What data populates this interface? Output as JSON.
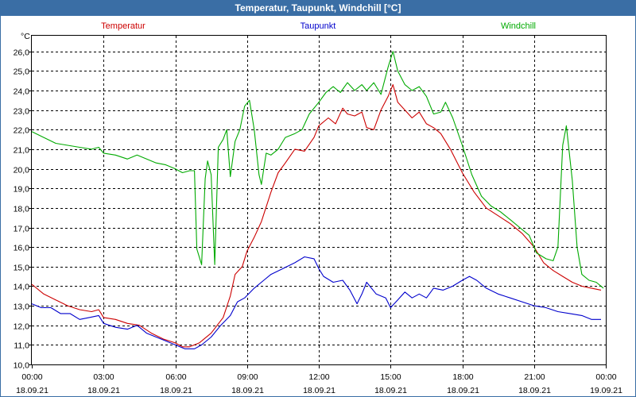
{
  "window": {
    "title": "Temperatur, Taupunkt, Windchill [°C]"
  },
  "chart_data": {
    "type": "line",
    "title": "Temperatur, Taupunkt, Windchill [°C]",
    "ylabel": "°C",
    "xlabel": "",
    "ylim": [
      10,
      26.8
    ],
    "xlim": [
      0,
      24
    ],
    "grid": true,
    "y_ticks": [
      {
        "v": 10,
        "label": "10,0"
      },
      {
        "v": 11,
        "label": "11,0"
      },
      {
        "v": 12,
        "label": "12,0"
      },
      {
        "v": 13,
        "label": "13,0"
      },
      {
        "v": 14,
        "label": "14,0"
      },
      {
        "v": 15,
        "label": "15,0"
      },
      {
        "v": 16,
        "label": "16,0"
      },
      {
        "v": 17,
        "label": "17,0"
      },
      {
        "v": 18,
        "label": "18,0"
      },
      {
        "v": 19,
        "label": "19,0"
      },
      {
        "v": 20,
        "label": "20,0"
      },
      {
        "v": 21,
        "label": "21,0"
      },
      {
        "v": 22,
        "label": "22,0"
      },
      {
        "v": 23,
        "label": "23,0"
      },
      {
        "v": 24,
        "label": "24,0"
      },
      {
        "v": 25,
        "label": "25,0"
      },
      {
        "v": 26,
        "label": "26,0"
      }
    ],
    "x_ticks": [
      {
        "h": 0,
        "time": "00:00",
        "date": "18.09.21"
      },
      {
        "h": 3,
        "time": "03:00",
        "date": "18.09.21"
      },
      {
        "h": 6,
        "time": "06:00",
        "date": "18.09.21"
      },
      {
        "h": 9,
        "time": "09:00",
        "date": "18.09.21"
      },
      {
        "h": 12,
        "time": "12:00",
        "date": "18.09.21"
      },
      {
        "h": 15,
        "time": "15:00",
        "date": "18.09.21"
      },
      {
        "h": 18,
        "time": "18:00",
        "date": "18.09.21"
      },
      {
        "h": 21,
        "time": "21:00",
        "date": "18.09.21"
      },
      {
        "h": 24,
        "time": "00:00",
        "date": "19.09.21"
      }
    ],
    "series": [
      {
        "name": "Temperatur",
        "color": "#cc0000",
        "points": [
          [
            0,
            14.1
          ],
          [
            0.5,
            13.6
          ],
          [
            1,
            13.3
          ],
          [
            1.5,
            13.0
          ],
          [
            2,
            12.8
          ],
          [
            2.5,
            12.7
          ],
          [
            2.8,
            12.8
          ],
          [
            3.0,
            12.4
          ],
          [
            3.5,
            12.3
          ],
          [
            4,
            12.1
          ],
          [
            4.5,
            12.0
          ],
          [
            5,
            11.6
          ],
          [
            5.5,
            11.3
          ],
          [
            6,
            11.1
          ],
          [
            6.3,
            10.9
          ],
          [
            6.6,
            10.9
          ],
          [
            7,
            11.1
          ],
          [
            7.5,
            11.6
          ],
          [
            8,
            12.4
          ],
          [
            8.3,
            13.5
          ],
          [
            8.5,
            14.6
          ],
          [
            8.8,
            15.0
          ],
          [
            9,
            15.8
          ],
          [
            9.3,
            16.5
          ],
          [
            9.6,
            17.3
          ],
          [
            10,
            18.8
          ],
          [
            10.3,
            19.8
          ],
          [
            10.6,
            20.3
          ],
          [
            11,
            21.0
          ],
          [
            11.4,
            20.9
          ],
          [
            11.8,
            21.6
          ],
          [
            12,
            22.2
          ],
          [
            12.4,
            22.6
          ],
          [
            12.7,
            22.3
          ],
          [
            13,
            23.1
          ],
          [
            13.2,
            22.8
          ],
          [
            13.5,
            22.7
          ],
          [
            13.8,
            22.9
          ],
          [
            14,
            22.1
          ],
          [
            14.3,
            22.0
          ],
          [
            14.6,
            23.0
          ],
          [
            14.9,
            23.7
          ],
          [
            15.1,
            24.3
          ],
          [
            15.3,
            23.4
          ],
          [
            15.6,
            23.0
          ],
          [
            15.9,
            22.6
          ],
          [
            16.2,
            22.9
          ],
          [
            16.5,
            22.3
          ],
          [
            16.8,
            22.1
          ],
          [
            17.1,
            21.8
          ],
          [
            17.5,
            21.0
          ],
          [
            18,
            19.8
          ],
          [
            18.5,
            18.8
          ],
          [
            19,
            18.0
          ],
          [
            19.5,
            17.6
          ],
          [
            20,
            17.2
          ],
          [
            20.5,
            16.7
          ],
          [
            21,
            16.0
          ],
          [
            21.4,
            15.2
          ],
          [
            21.8,
            14.8
          ],
          [
            22.2,
            14.5
          ],
          [
            22.6,
            14.2
          ],
          [
            23,
            14.0
          ],
          [
            23.4,
            13.9
          ],
          [
            23.8,
            13.8
          ]
        ]
      },
      {
        "name": "Taupunkt",
        "color": "#0000cc",
        "points": [
          [
            0,
            13.1
          ],
          [
            0.4,
            12.9
          ],
          [
            0.8,
            12.9
          ],
          [
            1.2,
            12.6
          ],
          [
            1.6,
            12.6
          ],
          [
            2,
            12.3
          ],
          [
            2.4,
            12.4
          ],
          [
            2.8,
            12.5
          ],
          [
            3.0,
            12.1
          ],
          [
            3.5,
            11.9
          ],
          [
            4,
            11.8
          ],
          [
            4.4,
            12.0
          ],
          [
            4.8,
            11.6
          ],
          [
            5.2,
            11.4
          ],
          [
            5.6,
            11.2
          ],
          [
            6,
            11.0
          ],
          [
            6.4,
            10.8
          ],
          [
            6.8,
            10.8
          ],
          [
            7.1,
            11.0
          ],
          [
            7.5,
            11.4
          ],
          [
            7.9,
            12.0
          ],
          [
            8.3,
            12.5
          ],
          [
            8.6,
            13.2
          ],
          [
            8.9,
            13.4
          ],
          [
            9.3,
            13.9
          ],
          [
            9.7,
            14.3
          ],
          [
            10,
            14.6
          ],
          [
            10.5,
            14.9
          ],
          [
            11,
            15.2
          ],
          [
            11.4,
            15.5
          ],
          [
            11.8,
            15.4
          ],
          [
            12,
            14.9
          ],
          [
            12.2,
            14.5
          ],
          [
            12.6,
            14.2
          ],
          [
            13,
            14.3
          ],
          [
            13.3,
            13.8
          ],
          [
            13.6,
            13.1
          ],
          [
            13.8,
            13.6
          ],
          [
            14,
            14.2
          ],
          [
            14.4,
            13.6
          ],
          [
            14.8,
            13.4
          ],
          [
            15.0,
            12.9
          ],
          [
            15.3,
            13.3
          ],
          [
            15.6,
            13.7
          ],
          [
            15.9,
            13.4
          ],
          [
            16.2,
            13.6
          ],
          [
            16.5,
            13.4
          ],
          [
            16.8,
            13.9
          ],
          [
            17.2,
            13.8
          ],
          [
            17.6,
            14.0
          ],
          [
            18.0,
            14.3
          ],
          [
            18.3,
            14.5
          ],
          [
            18.6,
            14.3
          ],
          [
            19,
            13.9
          ],
          [
            19.5,
            13.6
          ],
          [
            20,
            13.4
          ],
          [
            20.5,
            13.2
          ],
          [
            21,
            13.0
          ],
          [
            21.5,
            12.9
          ],
          [
            22,
            12.7
          ],
          [
            22.5,
            12.6
          ],
          [
            23,
            12.5
          ],
          [
            23.4,
            12.3
          ],
          [
            23.8,
            12.3
          ]
        ]
      },
      {
        "name": "Windchill",
        "color": "#00aa00",
        "points": [
          [
            0,
            21.9
          ],
          [
            0.5,
            21.6
          ],
          [
            1,
            21.3
          ],
          [
            1.5,
            21.2
          ],
          [
            2,
            21.1
          ],
          [
            2.5,
            21.0
          ],
          [
            2.8,
            21.1
          ],
          [
            3.0,
            20.8
          ],
          [
            3.5,
            20.7
          ],
          [
            4,
            20.5
          ],
          [
            4.4,
            20.7
          ],
          [
            4.8,
            20.5
          ],
          [
            5.2,
            20.3
          ],
          [
            5.6,
            20.2
          ],
          [
            6,
            20.0
          ],
          [
            6.3,
            19.8
          ],
          [
            6.6,
            19.9
          ],
          [
            6.8,
            19.9
          ],
          [
            6.9,
            15.9
          ],
          [
            7.1,
            15.1
          ],
          [
            7.25,
            19.5
          ],
          [
            7.35,
            20.4
          ],
          [
            7.5,
            19.7
          ],
          [
            7.65,
            15.1
          ],
          [
            7.8,
            21.1
          ],
          [
            8.0,
            21.5
          ],
          [
            8.15,
            22.0
          ],
          [
            8.3,
            19.6
          ],
          [
            8.5,
            21.4
          ],
          [
            8.7,
            22.0
          ],
          [
            8.9,
            23.2
          ],
          [
            9.1,
            23.5
          ],
          [
            9.3,
            22.0
          ],
          [
            9.5,
            19.7
          ],
          [
            9.6,
            19.2
          ],
          [
            9.8,
            20.8
          ],
          [
            10.0,
            20.7
          ],
          [
            10.3,
            21.0
          ],
          [
            10.6,
            21.6
          ],
          [
            11,
            21.8
          ],
          [
            11.3,
            22.0
          ],
          [
            11.6,
            22.8
          ],
          [
            12,
            23.4
          ],
          [
            12.3,
            23.9
          ],
          [
            12.6,
            24.2
          ],
          [
            12.9,
            23.9
          ],
          [
            13.2,
            24.4
          ],
          [
            13.5,
            24.0
          ],
          [
            13.8,
            24.3
          ],
          [
            14,
            24.0
          ],
          [
            14.3,
            24.4
          ],
          [
            14.6,
            23.8
          ],
          [
            14.9,
            25.2
          ],
          [
            15.1,
            26.0
          ],
          [
            15.3,
            25.0
          ],
          [
            15.6,
            24.3
          ],
          [
            15.9,
            24.0
          ],
          [
            16.2,
            24.2
          ],
          [
            16.5,
            23.7
          ],
          [
            16.8,
            22.8
          ],
          [
            17.1,
            22.9
          ],
          [
            17.3,
            23.4
          ],
          [
            17.6,
            22.6
          ],
          [
            18,
            21.2
          ],
          [
            18.4,
            19.7
          ],
          [
            18.8,
            18.6
          ],
          [
            19.2,
            18.1
          ],
          [
            19.6,
            17.8
          ],
          [
            20,
            17.4
          ],
          [
            20.4,
            17.0
          ],
          [
            20.8,
            16.6
          ],
          [
            21.1,
            15.7
          ],
          [
            21.5,
            15.4
          ],
          [
            21.8,
            15.3
          ],
          [
            22.0,
            16.0
          ],
          [
            22.2,
            21.2
          ],
          [
            22.35,
            22.2
          ],
          [
            22.6,
            19.4
          ],
          [
            22.8,
            16.0
          ],
          [
            23,
            14.6
          ],
          [
            23.3,
            14.3
          ],
          [
            23.6,
            14.2
          ],
          [
            23.9,
            13.9
          ]
        ]
      }
    ]
  }
}
